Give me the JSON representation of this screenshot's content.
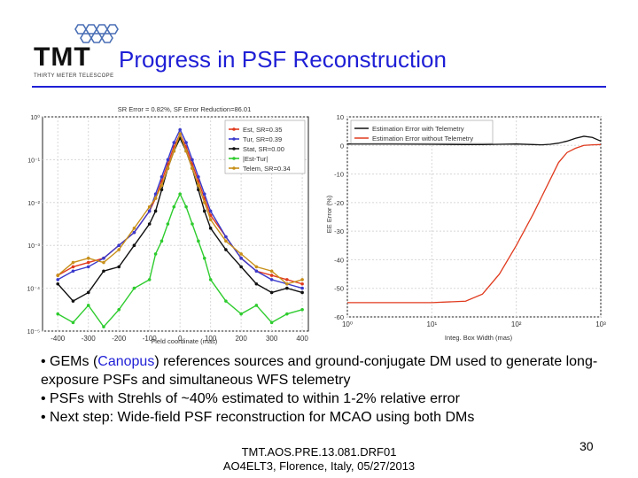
{
  "slide": {
    "logo_text": "TMT",
    "logo_subtext": "THIRTY METER TELESCOPE",
    "title": "Progress in PSF Reconstruction",
    "page_number": "30",
    "footer_line1": "TMT.AOS.PRE.13.081.DRF01",
    "footer_line2": "AO4ELT3, Florence, Italy, 05/27/2013"
  },
  "bullets": [
    {
      "parts": [
        {
          "text": "• GEMs (",
          "hl": false
        },
        {
          "text": "Canopus",
          "hl": true
        },
        {
          "text": ") references sources and ground-conjugate DM used to generate long-exposure PSFs and simultaneous WFS telemetry",
          "hl": false
        }
      ]
    },
    {
      "parts": [
        {
          "text": "• PSFs with Strehls of ~40% estimated to within 1-2% relative error",
          "hl": false
        }
      ]
    },
    {
      "parts": [
        {
          "text": "• Next step:  Wide-field PSF reconstruction for MCAO using both DMs",
          "hl": false
        }
      ]
    }
  ],
  "colors": {
    "title": "#1f1fd6",
    "est": "#e03a1e",
    "tur": "#3a3acc",
    "stat": "#111111",
    "est_tur": "#2ecc2e",
    "telem": "#c8901a"
  },
  "chart_data": [
    {
      "type": "line",
      "title": "SR Error = 0.82%, SF Error Reduction=86.01",
      "xlabel": "Field coordinate (mas)",
      "xlim": [
        -450,
        420
      ],
      "x_ticks": [
        "-400",
        "-300",
        "-200",
        "-100",
        "0",
        "100",
        "200",
        "300",
        "400"
      ],
      "y_log": true,
      "ylim_log10": [
        -5,
        0
      ],
      "y_ticks": [
        "10⁰",
        "10⁻¹",
        "10⁻²",
        "10⁻³",
        "10⁻⁴",
        "10⁻⁵"
      ],
      "legend_position": "top-right",
      "legend": [
        "Est, SR=0.35",
        "Tur, SR=0.39",
        "Stat, SR=0.00",
        "|Est-Tur|",
        "Telem, SR=0.34"
      ],
      "x": [
        -400,
        -350,
        -300,
        -250,
        -200,
        -150,
        -100,
        -80,
        -60,
        -40,
        -20,
        0,
        20,
        40,
        60,
        80,
        100,
        150,
        200,
        250,
        300,
        350,
        400
      ],
      "series": [
        {
          "name": "Est, SR=0.35",
          "color_key": "est",
          "log10_y": [
            -3.7,
            -3.5,
            -3.4,
            -3.3,
            -3.0,
            -2.7,
            -2.2,
            -1.9,
            -1.5,
            -1.1,
            -0.7,
            -0.4,
            -0.7,
            -1.1,
            -1.5,
            -1.9,
            -2.3,
            -2.8,
            -3.3,
            -3.6,
            -3.7,
            -3.8,
            -3.9
          ]
        },
        {
          "name": "Tur, SR=0.39",
          "color_key": "tur",
          "log10_y": [
            -3.8,
            -3.6,
            -3.5,
            -3.3,
            -3.0,
            -2.7,
            -2.2,
            -1.8,
            -1.4,
            -1.0,
            -0.6,
            -0.3,
            -0.6,
            -1.0,
            -1.4,
            -1.8,
            -2.2,
            -2.8,
            -3.3,
            -3.6,
            -3.8,
            -3.9,
            -4.0
          ]
        },
        {
          "name": "Stat, SR=0.00",
          "color_key": "stat",
          "log10_y": [
            -3.9,
            -4.3,
            -4.1,
            -3.6,
            -3.5,
            -3.0,
            -2.5,
            -2.2,
            -1.7,
            -1.2,
            -0.8,
            -0.5,
            -0.8,
            -1.2,
            -1.7,
            -2.2,
            -2.6,
            -3.1,
            -3.5,
            -3.9,
            -4.1,
            -4.0,
            -4.1
          ]
        },
        {
          "name": "|Est-Tur|",
          "color_key": "est_tur",
          "log10_y": [
            -4.6,
            -4.8,
            -4.4,
            -4.9,
            -4.5,
            -4.0,
            -3.8,
            -3.2,
            -2.9,
            -2.5,
            -2.1,
            -1.8,
            -2.1,
            -2.5,
            -2.9,
            -3.3,
            -3.8,
            -4.3,
            -4.6,
            -4.4,
            -4.8,
            -4.6,
            -4.5
          ]
        },
        {
          "name": "Telem, SR=0.34",
          "color_key": "telem",
          "log10_y": [
            -3.7,
            -3.4,
            -3.3,
            -3.4,
            -3.1,
            -2.6,
            -2.1,
            -1.9,
            -1.6,
            -1.2,
            -0.8,
            -0.4,
            -0.8,
            -1.2,
            -1.6,
            -2.0,
            -2.4,
            -2.9,
            -3.2,
            -3.5,
            -3.6,
            -3.9,
            -3.8
          ]
        }
      ]
    },
    {
      "type": "line",
      "xlabel": "Integ. Box Width (mas)",
      "ylabel": "EE Error (%)",
      "x_log": true,
      "xlim_log10": [
        0,
        3
      ],
      "x_ticks": [
        "10⁰",
        "10¹",
        "10²",
        "10³"
      ],
      "ylim": [
        -60,
        10
      ],
      "y_ticks": [
        "10",
        "0",
        "-10",
        "-20",
        "-30",
        "-40",
        "-50",
        "-60"
      ],
      "legend_position": "top",
      "legend": [
        "Estimation Error with Telemetry",
        "Estimation Error without Telemetry"
      ],
      "log10_x": [
        0,
        0.5,
        1.0,
        1.4,
        1.6,
        1.8,
        2.0,
        2.2,
        2.3,
        2.4,
        2.5,
        2.6,
        2.7,
        2.8,
        2.9,
        3.0
      ],
      "series": [
        {
          "name": "Estimation Error with Telemetry",
          "color": "#111111",
          "y": [
            0.5,
            0.5,
            0.4,
            0.3,
            0.3,
            0.4,
            0.5,
            0.3,
            0.2,
            0.4,
            0.8,
            1.5,
            2.5,
            3.2,
            2.8,
            1.5
          ]
        },
        {
          "name": "Estimation Error without Telemetry",
          "color": "#e03a1e",
          "y": [
            -55,
            -55,
            -55,
            -54.5,
            -52,
            -45,
            -35,
            -24,
            -18,
            -12,
            -6,
            -2.5,
            -1,
            0,
            0.2,
            0.3
          ]
        }
      ]
    }
  ]
}
